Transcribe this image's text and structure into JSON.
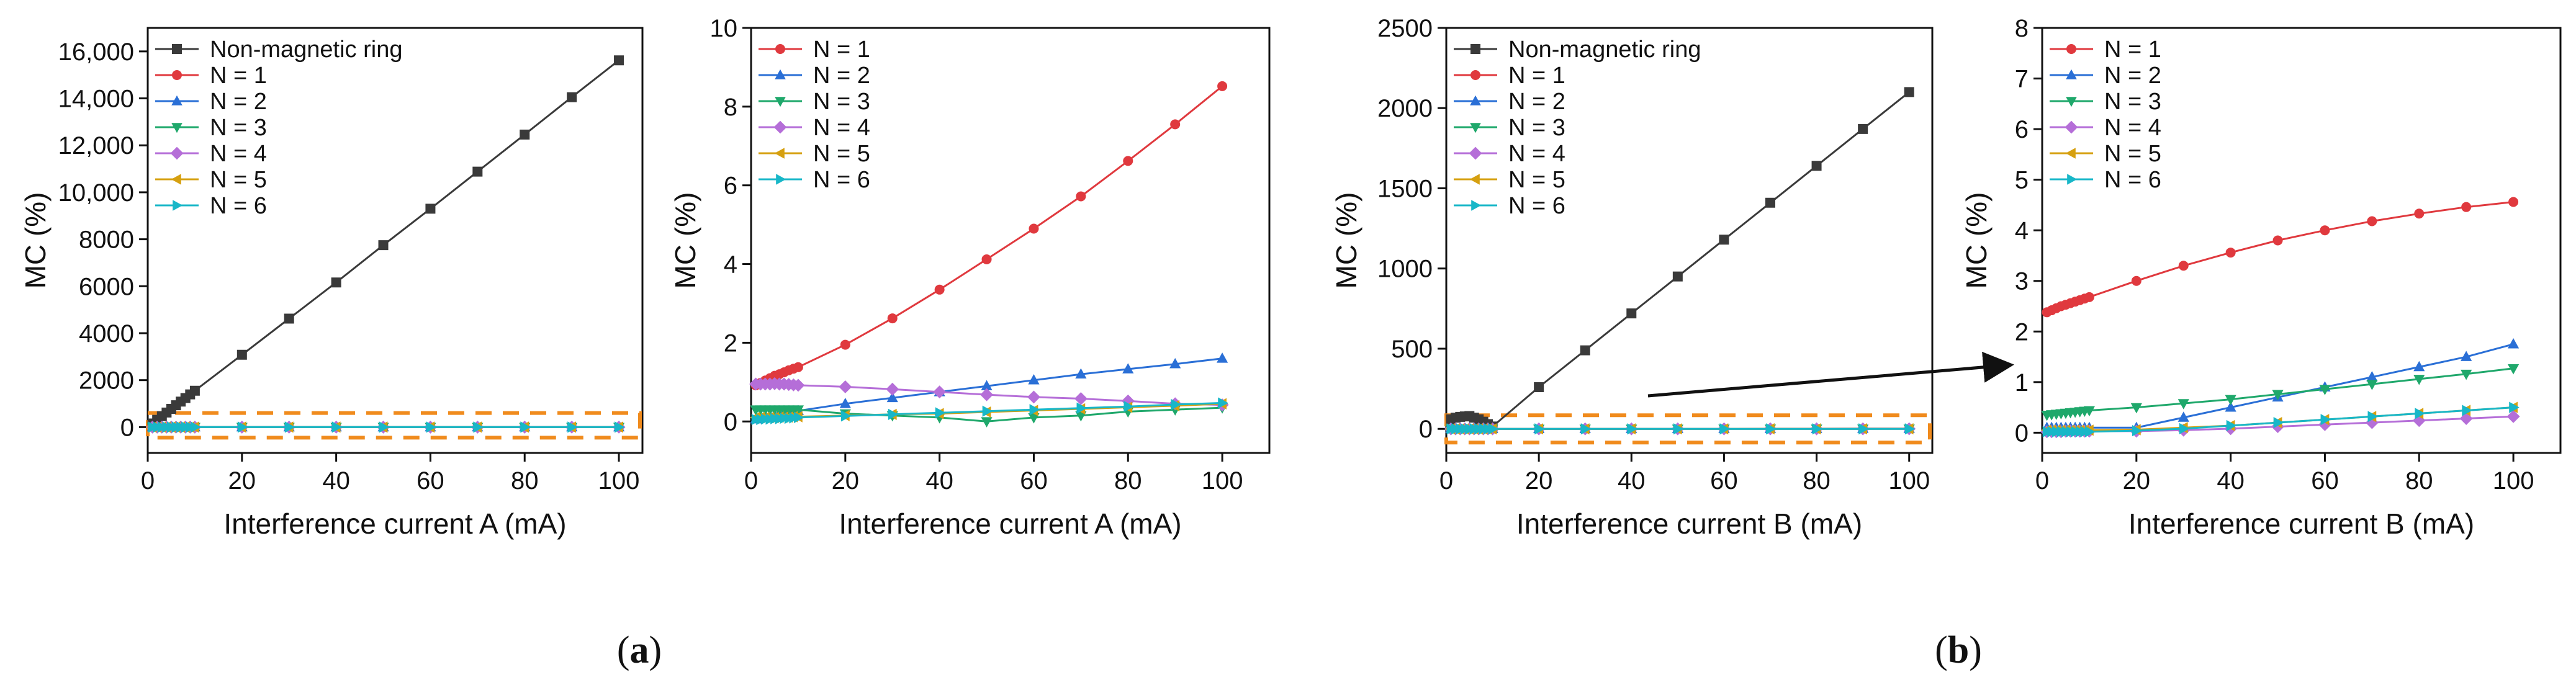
{
  "colors": {
    "series": [
      "#3a3a3a",
      "#e0393e",
      "#2a6fd6",
      "#1fa86b",
      "#b56ed8",
      "#d6a010",
      "#18b7c8"
    ],
    "highlight": "#f08b1d"
  },
  "markers": [
    "square",
    "circle",
    "triangle-up",
    "triangle-down",
    "diamond",
    "triangle-left",
    "triangle-right"
  ],
  "panel_labels": [
    {
      "open": "(",
      "letter": "a",
      "close": ")"
    },
    {
      "open": "(",
      "letter": "b",
      "close": ")"
    }
  ],
  "chart_data": [
    {
      "type": "line",
      "xlabel": "Interference current A (mA)",
      "ylabel": "MC (%)",
      "xlim": [
        0,
        105
      ],
      "ylim": [
        -1100,
        17000
      ],
      "xticks": [
        0,
        20,
        40,
        60,
        80,
        100
      ],
      "yticks": [
        0,
        2000,
        4000,
        6000,
        8000,
        10000,
        12000,
        14000,
        16000
      ],
      "ytick_labels": [
        "0",
        "2000",
        "4000",
        "6000",
        "8000",
        "10,000",
        "12,000",
        "14,000",
        "16,000"
      ],
      "grid": false,
      "legend": "top-left",
      "highlight_box": {
        "x": [
          0,
          105
        ],
        "y": [
          -450,
          600
        ]
      },
      "x": [
        1,
        2,
        3,
        4,
        5,
        6,
        7,
        8,
        9,
        10,
        20,
        30,
        40,
        50,
        60,
        70,
        80,
        90,
        100
      ],
      "series": [
        {
          "name": "Non-magnetic ring",
          "values": [
            155,
            310,
            465,
            620,
            775,
            930,
            1085,
            1240,
            1395,
            1550,
            3080,
            4620,
            6160,
            7750,
            9300,
            10880,
            12460,
            14050,
            15620
          ]
        },
        {
          "name": "N = 1",
          "values": [
            0.06,
            0.1,
            0.13,
            0.15,
            0.17,
            0.19,
            0.21,
            0.23,
            0.25,
            0.27,
            0.45,
            0.6,
            0.75,
            0.9,
            1.05,
            1.2,
            1.33,
            1.46,
            1.6
          ]
        },
        {
          "name": "N = 2",
          "values": [
            0.3,
            0.3,
            0.3,
            0.3,
            0.3,
            0.3,
            0.3,
            0.3,
            0.3,
            0.3,
            0.2,
            0.15,
            0.1,
            0.0,
            0.1,
            0.15,
            0.25,
            0.3,
            0.35
          ]
        },
        {
          "name": "N = 3",
          "values": [
            0.95,
            0.95,
            0.95,
            0.95,
            0.96,
            0.95,
            0.95,
            0.94,
            0.93,
            0.92,
            0.88,
            0.82,
            0.75,
            0.68,
            0.62,
            0.58,
            0.52,
            0.45,
            0.42
          ]
        },
        {
          "name": "N = 4",
          "values": [
            0.1,
            0.1,
            0.1,
            0.1,
            0.1,
            0.11,
            0.11,
            0.11,
            0.12,
            0.12,
            0.15,
            0.18,
            0.2,
            0.24,
            0.28,
            0.32,
            0.36,
            0.4,
            0.45
          ]
        },
        {
          "name": "N = 5",
          "values": [
            0.05,
            0.05,
            0.06,
            0.06,
            0.07,
            0.07,
            0.08,
            0.08,
            0.09,
            0.1,
            0.14,
            0.18,
            0.22,
            0.26,
            0.3,
            0.34,
            0.38,
            0.43,
            0.47
          ]
        },
        {
          "name": "N = 6",
          "values": [
            0.05,
            0.05,
            0.05,
            0.05,
            0.05,
            0.05,
            0.05,
            0.05,
            0.05,
            0.05,
            0.05,
            0.05,
            0.05,
            0.05,
            0.05,
            0.05,
            0.05,
            0.05,
            0.05
          ]
        }
      ]
    },
    {
      "type": "line",
      "xlabel": "Interference current A (mA)",
      "ylabel": "MC (%)",
      "xlim": [
        0,
        110
      ],
      "ylim": [
        -0.8,
        10
      ],
      "xticks": [
        0,
        20,
        40,
        60,
        80,
        100
      ],
      "yticks": [
        0,
        2,
        4,
        6,
        8,
        10
      ],
      "ytick_labels": [
        "0",
        "2",
        "4",
        "6",
        "8",
        "10"
      ],
      "grid": false,
      "legend": "top-left",
      "x": [
        1,
        2,
        3,
        4,
        5,
        6,
        7,
        8,
        9,
        10,
        20,
        30,
        40,
        50,
        60,
        70,
        80,
        90,
        100
      ],
      "series": [
        {
          "name": "N = 1",
          "values": [
            0.92,
            0.98,
            1.04,
            1.1,
            1.16,
            1.2,
            1.25,
            1.3,
            1.34,
            1.38,
            1.95,
            2.62,
            3.35,
            4.12,
            4.9,
            5.72,
            6.62,
            7.55,
            8.52
          ]
        },
        {
          "name": "N = 2",
          "values": [
            0.06,
            0.1,
            0.13,
            0.15,
            0.17,
            0.19,
            0.21,
            0.23,
            0.25,
            0.27,
            0.45,
            0.6,
            0.75,
            0.9,
            1.05,
            1.2,
            1.33,
            1.46,
            1.6
          ]
        },
        {
          "name": "N = 3",
          "values": [
            0.3,
            0.3,
            0.3,
            0.3,
            0.3,
            0.3,
            0.3,
            0.3,
            0.3,
            0.3,
            0.2,
            0.15,
            0.1,
            0.0,
            0.1,
            0.15,
            0.25,
            0.3,
            0.35
          ]
        },
        {
          "name": "N = 4",
          "values": [
            0.95,
            0.95,
            0.95,
            0.95,
            0.96,
            0.95,
            0.95,
            0.94,
            0.93,
            0.92,
            0.88,
            0.82,
            0.75,
            0.68,
            0.62,
            0.58,
            0.52,
            0.45,
            0.42
          ]
        },
        {
          "name": "N = 5",
          "values": [
            0.1,
            0.1,
            0.1,
            0.1,
            0.1,
            0.11,
            0.11,
            0.11,
            0.12,
            0.12,
            0.15,
            0.18,
            0.2,
            0.24,
            0.28,
            0.32,
            0.36,
            0.4,
            0.45
          ]
        },
        {
          "name": "N = 6",
          "values": [
            0.05,
            0.05,
            0.06,
            0.06,
            0.07,
            0.07,
            0.08,
            0.08,
            0.09,
            0.1,
            0.14,
            0.18,
            0.22,
            0.26,
            0.3,
            0.34,
            0.38,
            0.43,
            0.47
          ]
        }
      ]
    },
    {
      "type": "line",
      "xlabel": "Interference current B (mA)",
      "ylabel": "MC (%)",
      "xlim": [
        0,
        105
      ],
      "ylim": [
        -150,
        2500
      ],
      "xticks": [
        0,
        20,
        40,
        60,
        80,
        100
      ],
      "yticks": [
        0,
        500,
        1000,
        1500,
        2000,
        2500
      ],
      "ytick_labels": [
        "0",
        "500",
        "1000",
        "1500",
        "2000",
        "2500"
      ],
      "grid": false,
      "legend": "top-left",
      "highlight_box": {
        "x": [
          0,
          105
        ],
        "y": [
          -85,
          85
        ]
      },
      "x": [
        1,
        2,
        3,
        4,
        5,
        6,
        7,
        8,
        9,
        10,
        20,
        30,
        40,
        50,
        60,
        70,
        80,
        90,
        100
      ],
      "series": [
        {
          "name": "Non-magnetic ring",
          "values": [
            60,
            70,
            75,
            78,
            80,
            70,
            60,
            45,
            30,
            15,
            260,
            490,
            720,
            950,
            1180,
            1410,
            1640,
            1870,
            2100
          ]
        },
        {
          "name": "N = 1",
          "values": [
            0.1,
            0.1,
            0.1,
            0.1,
            0.1,
            0.1,
            0.1,
            0.1,
            0.1,
            0.1,
            0.1,
            0.3,
            0.5,
            0.7,
            0.9,
            1.1,
            1.3,
            1.5,
            1.75
          ]
        },
        {
          "name": "N = 2",
          "values": [
            0.35,
            0.36,
            0.37,
            0.38,
            0.39,
            0.4,
            0.41,
            0.42,
            0.43,
            0.44,
            0.5,
            0.58,
            0.66,
            0.76,
            0.86,
            0.96,
            1.06,
            1.16,
            1.27
          ]
        },
        {
          "name": "N = 3",
          "values": [
            0.02,
            0.02,
            0.02,
            0.02,
            0.03,
            0.03,
            0.03,
            0.03,
            0.03,
            0.03,
            0.03,
            0.05,
            0.08,
            0.12,
            0.16,
            0.2,
            0.24,
            0.28,
            0.32
          ]
        },
        {
          "name": "N = 4",
          "values": [
            0.05,
            0.05,
            0.05,
            0.05,
            0.05,
            0.05,
            0.05,
            0.05,
            0.05,
            0.05,
            0.06,
            0.1,
            0.14,
            0.2,
            0.26,
            0.32,
            0.38,
            0.44,
            0.5
          ]
        },
        {
          "name": "N = 5",
          "values": [
            0.02,
            0.02,
            0.02,
            0.02,
            0.02,
            0.02,
            0.02,
            0.02,
            0.02,
            0.02,
            0.04,
            0.08,
            0.14,
            0.2,
            0.26,
            0.32,
            0.38,
            0.44,
            0.5
          ]
        },
        {
          "name": "N = 6",
          "values": [
            0.02,
            0.02,
            0.02,
            0.02,
            0.02,
            0.02,
            0.02,
            0.02,
            0.02,
            0.02,
            0.02,
            0.02,
            0.02,
            0.02,
            0.02,
            0.02,
            0.02,
            0.02,
            0.02
          ]
        }
      ]
    },
    {
      "type": "line",
      "xlabel": "Interference current B (mA)",
      "ylabel": "MC (%)",
      "xlim": [
        0,
        110
      ],
      "ylim": [
        -0.4,
        8
      ],
      "xticks": [
        0,
        20,
        40,
        60,
        80,
        100
      ],
      "yticks": [
        0,
        1,
        2,
        3,
        4,
        5,
        6,
        7,
        8
      ],
      "ytick_labels": [
        "0",
        "1",
        "2",
        "3",
        "4",
        "5",
        "6",
        "7",
        "8"
      ],
      "grid": false,
      "legend": "top-left",
      "x": [
        1,
        2,
        3,
        4,
        5,
        6,
        7,
        8,
        9,
        10,
        20,
        30,
        40,
        50,
        60,
        70,
        80,
        90,
        100
      ],
      "series": [
        {
          "name": "N = 1",
          "values": [
            2.38,
            2.42,
            2.46,
            2.5,
            2.53,
            2.56,
            2.59,
            2.62,
            2.65,
            2.68,
            3.0,
            3.3,
            3.56,
            3.8,
            4.0,
            4.18,
            4.33,
            4.46,
            4.56
          ]
        },
        {
          "name": "N = 2",
          "values": [
            0.1,
            0.1,
            0.1,
            0.1,
            0.1,
            0.1,
            0.1,
            0.1,
            0.1,
            0.1,
            0.1,
            0.3,
            0.5,
            0.7,
            0.9,
            1.1,
            1.3,
            1.5,
            1.75
          ]
        },
        {
          "name": "N = 3",
          "values": [
            0.35,
            0.36,
            0.37,
            0.38,
            0.39,
            0.4,
            0.41,
            0.42,
            0.43,
            0.44,
            0.5,
            0.58,
            0.66,
            0.76,
            0.86,
            0.96,
            1.06,
            1.16,
            1.27
          ]
        },
        {
          "name": "N = 4",
          "values": [
            0.02,
            0.02,
            0.02,
            0.02,
            0.03,
            0.03,
            0.03,
            0.03,
            0.03,
            0.03,
            0.03,
            0.05,
            0.08,
            0.12,
            0.16,
            0.2,
            0.24,
            0.28,
            0.32
          ]
        },
        {
          "name": "N = 5",
          "values": [
            0.05,
            0.05,
            0.05,
            0.05,
            0.05,
            0.05,
            0.05,
            0.05,
            0.05,
            0.05,
            0.06,
            0.1,
            0.14,
            0.2,
            0.26,
            0.32,
            0.38,
            0.44,
            0.5
          ]
        },
        {
          "name": "N = 6",
          "values": [
            0.02,
            0.02,
            0.02,
            0.02,
            0.02,
            0.02,
            0.02,
            0.02,
            0.02,
            0.02,
            0.04,
            0.08,
            0.14,
            0.2,
            0.26,
            0.32,
            0.38,
            0.44,
            0.5
          ]
        }
      ]
    }
  ]
}
